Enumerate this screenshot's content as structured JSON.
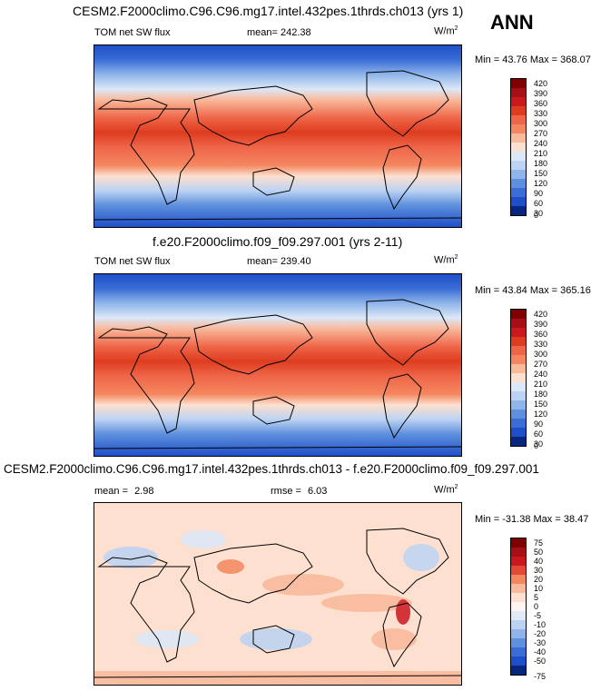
{
  "season": "ANN",
  "units_base": "W/m",
  "units_exp": "2",
  "panels": [
    {
      "title": "CESM2.F2000climo.C96.C96.mg17.intel.432pes.1thrds.ch013 (yrs 1)",
      "variable": "TOM net SW flux",
      "mean_label": "mean=",
      "mean": "242.38",
      "minmax": "Min =  43.76 Max = 368.07",
      "levels": [
        "420",
        "390",
        "360",
        "330",
        "300",
        "270",
        "240",
        "210",
        "180",
        "150",
        "120",
        "90",
        "60",
        "30",
        "0"
      ]
    },
    {
      "title": "f.e20.F2000climo.f09_f09.297.001 (yrs 2-11)",
      "variable": "TOM net SW flux",
      "mean_label": "mean=",
      "mean": "239.40",
      "minmax": "Min =  43.84 Max = 365.16",
      "levels": [
        "420",
        "390",
        "360",
        "330",
        "300",
        "270",
        "240",
        "210",
        "180",
        "150",
        "120",
        "90",
        "60",
        "30",
        "0"
      ]
    },
    {
      "title": "CESM2.F2000climo.C96.C96.mg17.intel.432pes.1thrds.ch013 - f.e20.F2000climo.f09_f09.297.001",
      "mean_label": "mean =",
      "mean": "2.98",
      "rmse_label": "rmse =",
      "rmse": "6.03",
      "minmax": "Min = -31.38 Max =  38.47",
      "levels": [
        "75",
        "50",
        "40",
        "30",
        "20",
        "10",
        "5",
        "0",
        "-5",
        "-10",
        "-20",
        "-30",
        "-40",
        "-50",
        "-75"
      ]
    }
  ],
  "colors": {
    "abs_scale": [
      "#7f0000",
      "#a50f15",
      "#cb181d",
      "#de3c1f",
      "#ef6548",
      "#f4875f",
      "#f9b99b",
      "#fde0d0",
      "#dbe8f8",
      "#bcd3f3",
      "#8fb5ea",
      "#5e90dd",
      "#3a6dd6",
      "#1f4fc8",
      "#08257f"
    ],
    "diff_scale": [
      "#7f0000",
      "#a50f15",
      "#cb181d",
      "#e34a33",
      "#f4875f",
      "#f9b99b",
      "#fde0d0",
      "#fff5f0",
      "#e1ebf8",
      "#bcd3f3",
      "#8fb5ea",
      "#5e90dd",
      "#3a6dd6",
      "#1f4fc8",
      "#08257f"
    ]
  }
}
